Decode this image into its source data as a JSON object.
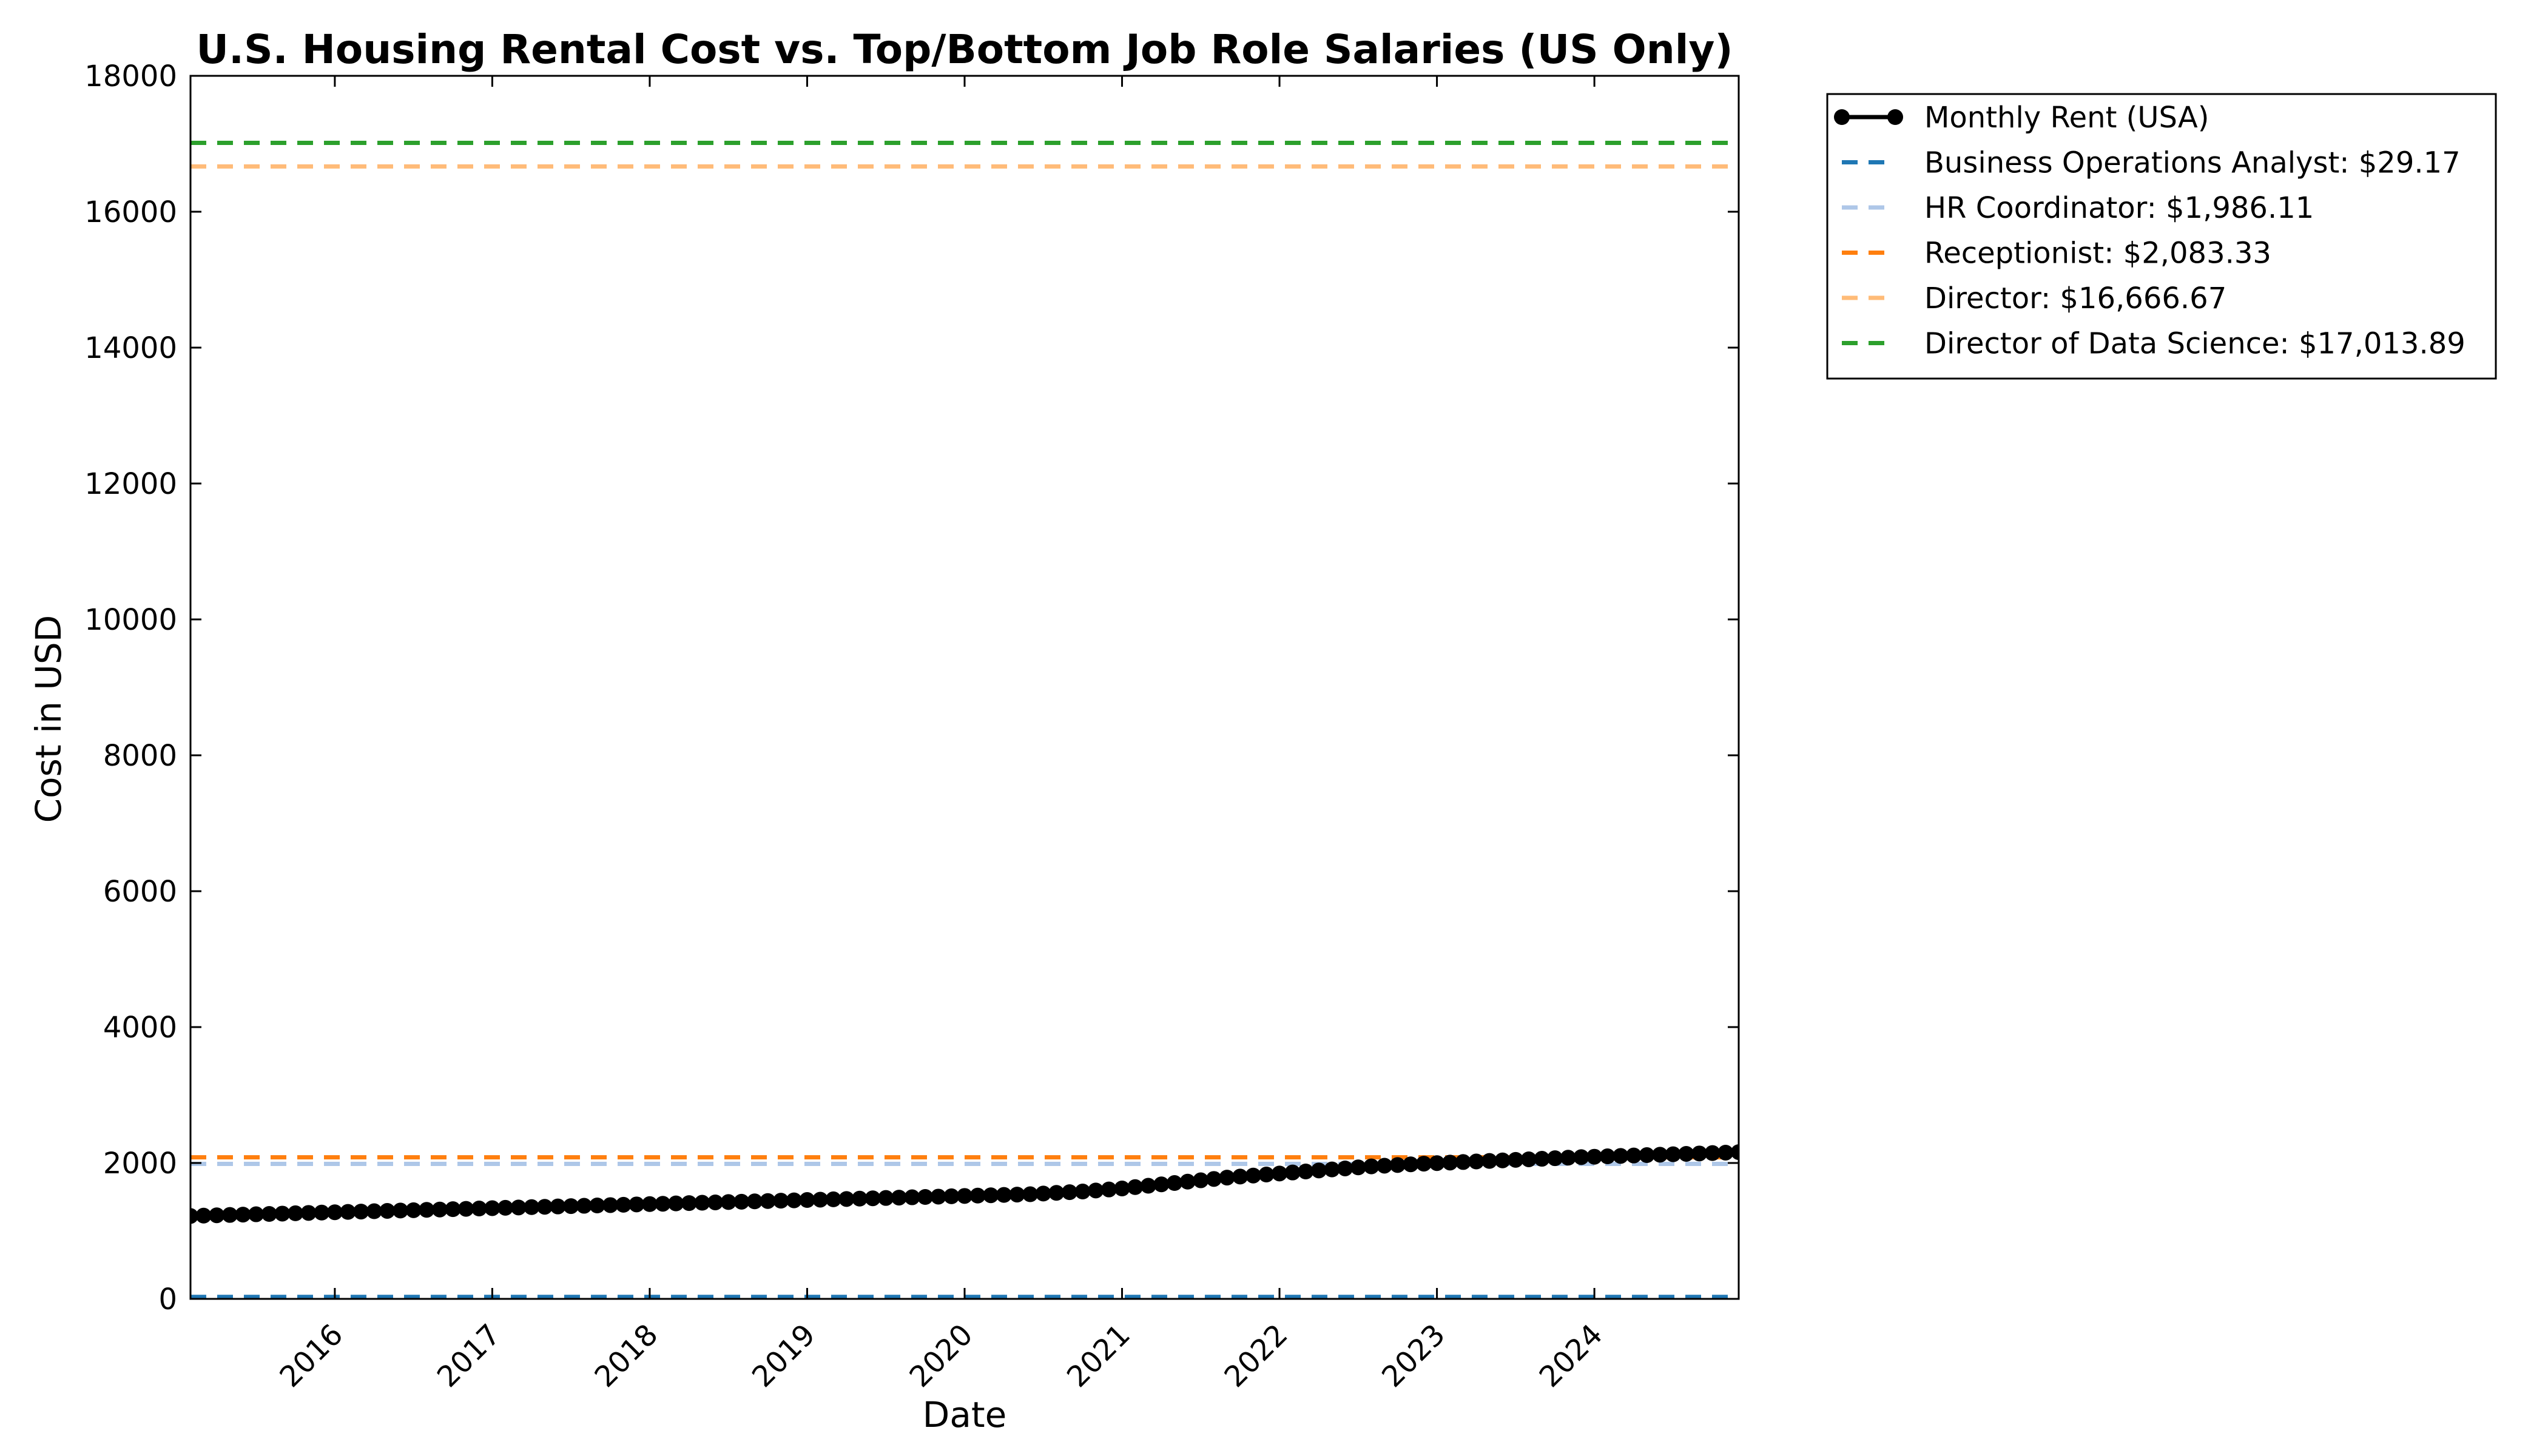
{
  "chart_data": {
    "type": "line",
    "title": "U.S. Housing Rental Cost vs. Top/Bottom Job Role Salaries (US Only)",
    "xlabel": "Date",
    "ylabel": "Cost in USD",
    "xlim": [
      "2015-02",
      "2024-12"
    ],
    "ylim": [
      0,
      18000
    ],
    "y_ticks": [
      0,
      2000,
      4000,
      6000,
      8000,
      10000,
      12000,
      14000,
      16000,
      18000
    ],
    "x_ticks": [
      "2016",
      "2017",
      "2018",
      "2019",
      "2020",
      "2021",
      "2022",
      "2023",
      "2024"
    ],
    "grid": false,
    "legend_position": "outside-top-right",
    "series": [
      {
        "name": "Monthly Rent (USA)",
        "color": "#000000",
        "style": "line-with-markers",
        "x": [
          "2015-02",
          "2015-03",
          "2015-04",
          "2015-05",
          "2015-06",
          "2015-07",
          "2015-08",
          "2015-09",
          "2015-10",
          "2015-11",
          "2015-12",
          "2016-01",
          "2016-02",
          "2016-03",
          "2016-04",
          "2016-05",
          "2016-06",
          "2016-07",
          "2016-08",
          "2016-09",
          "2016-10",
          "2016-11",
          "2016-12",
          "2017-01",
          "2017-02",
          "2017-03",
          "2017-04",
          "2017-05",
          "2017-06",
          "2017-07",
          "2017-08",
          "2017-09",
          "2017-10",
          "2017-11",
          "2017-12",
          "2018-01",
          "2018-02",
          "2018-03",
          "2018-04",
          "2018-05",
          "2018-06",
          "2018-07",
          "2018-08",
          "2018-09",
          "2018-10",
          "2018-11",
          "2018-12",
          "2019-01",
          "2019-02",
          "2019-03",
          "2019-04",
          "2019-05",
          "2019-06",
          "2019-07",
          "2019-08",
          "2019-09",
          "2019-10",
          "2019-11",
          "2019-12",
          "2020-01",
          "2020-02",
          "2020-03",
          "2020-04",
          "2020-05",
          "2020-06",
          "2020-07",
          "2020-08",
          "2020-09",
          "2020-10",
          "2020-11",
          "2020-12",
          "2021-01",
          "2021-02",
          "2021-03",
          "2021-04",
          "2021-05",
          "2021-06",
          "2021-07",
          "2021-08",
          "2021-09",
          "2021-10",
          "2021-11",
          "2021-12",
          "2022-01",
          "2022-02",
          "2022-03",
          "2022-04",
          "2022-05",
          "2022-06",
          "2022-07",
          "2022-08",
          "2022-09",
          "2022-10",
          "2022-11",
          "2022-12",
          "2023-01",
          "2023-02",
          "2023-03",
          "2023-04",
          "2023-05",
          "2023-06",
          "2023-07",
          "2023-08",
          "2023-09",
          "2023-10",
          "2023-11",
          "2023-12",
          "2024-01",
          "2024-02",
          "2024-03",
          "2024-04",
          "2024-05",
          "2024-06",
          "2024-07",
          "2024-08",
          "2024-09",
          "2024-10",
          "2024-11",
          "2024-12"
        ],
        "values": [
          1220,
          1225,
          1230,
          1235,
          1240,
          1245,
          1250,
          1255,
          1260,
          1265,
          1270,
          1275,
          1280,
          1285,
          1290,
          1295,
          1300,
          1305,
          1310,
          1315,
          1320,
          1325,
          1330,
          1335,
          1340,
          1345,
          1350,
          1355,
          1360,
          1365,
          1370,
          1375,
          1380,
          1385,
          1390,
          1395,
          1400,
          1405,
          1410,
          1415,
          1420,
          1425,
          1430,
          1435,
          1440,
          1445,
          1450,
          1455,
          1460,
          1465,
          1470,
          1475,
          1480,
          1485,
          1490,
          1495,
          1500,
          1505,
          1510,
          1515,
          1520,
          1525,
          1530,
          1535,
          1540,
          1550,
          1560,
          1570,
          1580,
          1595,
          1610,
          1625,
          1645,
          1665,
          1685,
          1705,
          1725,
          1745,
          1765,
          1785,
          1800,
          1815,
          1830,
          1845,
          1860,
          1875,
          1890,
          1905,
          1920,
          1935,
          1950,
          1960,
          1970,
          1980,
          1990,
          1998,
          2006,
          2014,
          2022,
          2030,
          2038,
          2046,
          2054,
          2062,
          2070,
          2078,
          2086,
          2092,
          2098,
          2104,
          2110,
          2116,
          2122,
          2128,
          2134,
          2140,
          2146,
          2152,
          2160
        ]
      },
      {
        "name": "Business Operations Analyst: $29.17",
        "color": "#1f77b4",
        "style": "dashed-hline",
        "value": 29.17
      },
      {
        "name": "HR Coordinator: $1,986.11",
        "color": "#aec7e8",
        "style": "dashed-hline",
        "value": 1986.11
      },
      {
        "name": "Receptionist: $2,083.33",
        "color": "#ff7f0e",
        "style": "dashed-hline",
        "value": 2083.33
      },
      {
        "name": "Director: $16,666.67",
        "color": "#ffbb78",
        "style": "dashed-hline",
        "value": 16666.67
      },
      {
        "name": "Director of Data Science: $17,013.89",
        "color": "#2ca02c",
        "style": "dashed-hline",
        "value": 17013.89
      }
    ]
  }
}
